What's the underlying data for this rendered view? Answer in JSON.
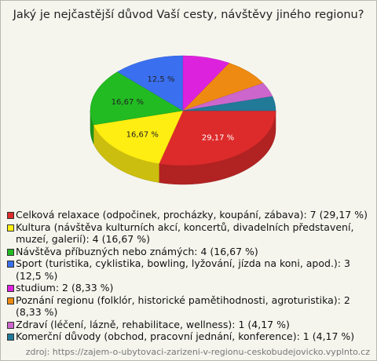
{
  "chart_data": {
    "type": "pie",
    "title": "Jaký je nejčastější důvod Vaší cesty, návštěvy jiného regionu?",
    "categories": [
      "Celková relaxace (odpočinek, procházky, koupání, zábava): 7 (29,17 %)",
      "Kultura (návštěva kulturních akcí, koncertů, divadelních představení, muzeí, galerií): 4 (16,67 %)",
      "Návštěva příbuzných nebo známých: 4 (16,67 %)",
      "Sport (turistika, cyklistika, bowling, lyžování, jízda na koni, apod.): 3 (12,5 %)",
      "studium: 2 (8,33 %)",
      "Poznání regionu (folklór, historické pamětihodnosti, agroturistika): 2 (8,33 %)",
      "Zdraví (léčení, lázně, rehabilitace, wellness): 1 (4,17 %)",
      "Komerční důvody (obchod, pracovní jednání, konference): 1 (4,17 %)"
    ],
    "values": [
      29.17,
      16.67,
      16.67,
      12.5,
      8.33,
      8.33,
      4.17,
      4.17
    ],
    "value_labels": [
      "29,17 %",
      "16,67 %",
      "16,67 %",
      "12,5 %",
      null,
      null,
      null,
      null
    ],
    "colors": [
      "#dd2a2a",
      "#ffee11",
      "#22bb22",
      "#3a6ff0",
      "#dd22dd",
      "#ee8a11",
      "#cc66cc",
      "#227a99"
    ],
    "source": "zdroj: https://zajem-o-ubytovaci-zarizeni-v-regionu-ceskobudejovicko.vyplnto.cz"
  }
}
